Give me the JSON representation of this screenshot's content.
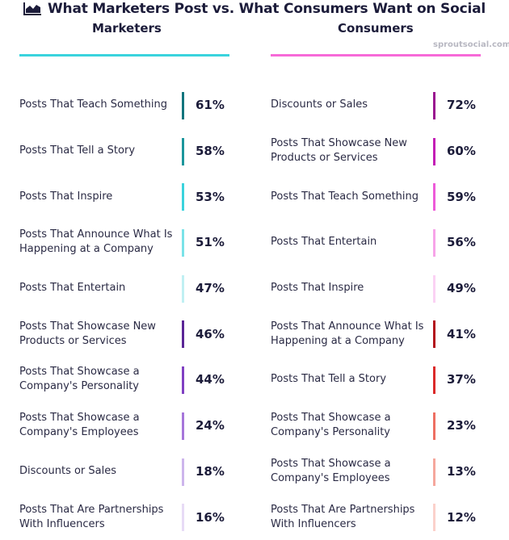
{
  "title": "What Marketers Post vs. What Consumers Want on Social",
  "brand": "sproutsocial.com",
  "colors": {
    "marketers_rule": "#3ad3dd",
    "consumers_rule": "#f76ad8"
  },
  "chart_data": [
    {
      "type": "table",
      "title": "Marketers",
      "unit": "%",
      "categories": [
        "Posts That Teach Something",
        "Posts That Tell a Story",
        "Posts That Inspire",
        "Posts That Announce What Is Happening at a Company",
        "Posts That Entertain",
        "Posts That Showcase New Products or Services",
        "Posts That Showcase a Company's Personality",
        "Posts That Showcase a Company's Employees",
        "Discounts or Sales",
        "Posts That Are Partnerships With Influencers"
      ],
      "values": [
        61,
        58,
        53,
        51,
        47,
        46,
        44,
        24,
        18,
        16
      ],
      "labels": [
        "61%",
        "58%",
        "53%",
        "51%",
        "47%",
        "46%",
        "44%",
        "24%",
        "18%",
        "16%"
      ],
      "colors": [
        "#12757d",
        "#1b969c",
        "#3ad3dd",
        "#7ae3e8",
        "#c0f0f3",
        "#5a2596",
        "#8040c2",
        "#a676da",
        "#cdb5ec",
        "#e7dbf6"
      ]
    },
    {
      "type": "table",
      "title": "Consumers",
      "unit": "%",
      "categories": [
        "Discounts or Sales",
        "Posts That Showcase New Products or Services",
        "Posts That Teach Something",
        "Posts That Entertain",
        "Posts That Inspire",
        "Posts That Announce What Is Happening at a Company",
        "Posts That Tell a Story",
        "Posts That Showcase a Company's Personality",
        "Posts That Showcase a Company's Employees",
        "Posts That Are Partnerships With Influencers"
      ],
      "values": [
        72,
        60,
        59,
        56,
        49,
        41,
        37,
        23,
        13,
        12
      ],
      "labels": [
        "72%",
        "60%",
        "59%",
        "56%",
        "49%",
        "41%",
        "37%",
        "23%",
        "13%",
        "12%"
      ],
      "colors": [
        "#9a1490",
        "#c31eb6",
        "#ed5bd9",
        "#f7a4e9",
        "#fbd2f4",
        "#b3121d",
        "#db2a2a",
        "#ee6f62",
        "#f5a79d",
        "#fbd1cb"
      ]
    }
  ]
}
